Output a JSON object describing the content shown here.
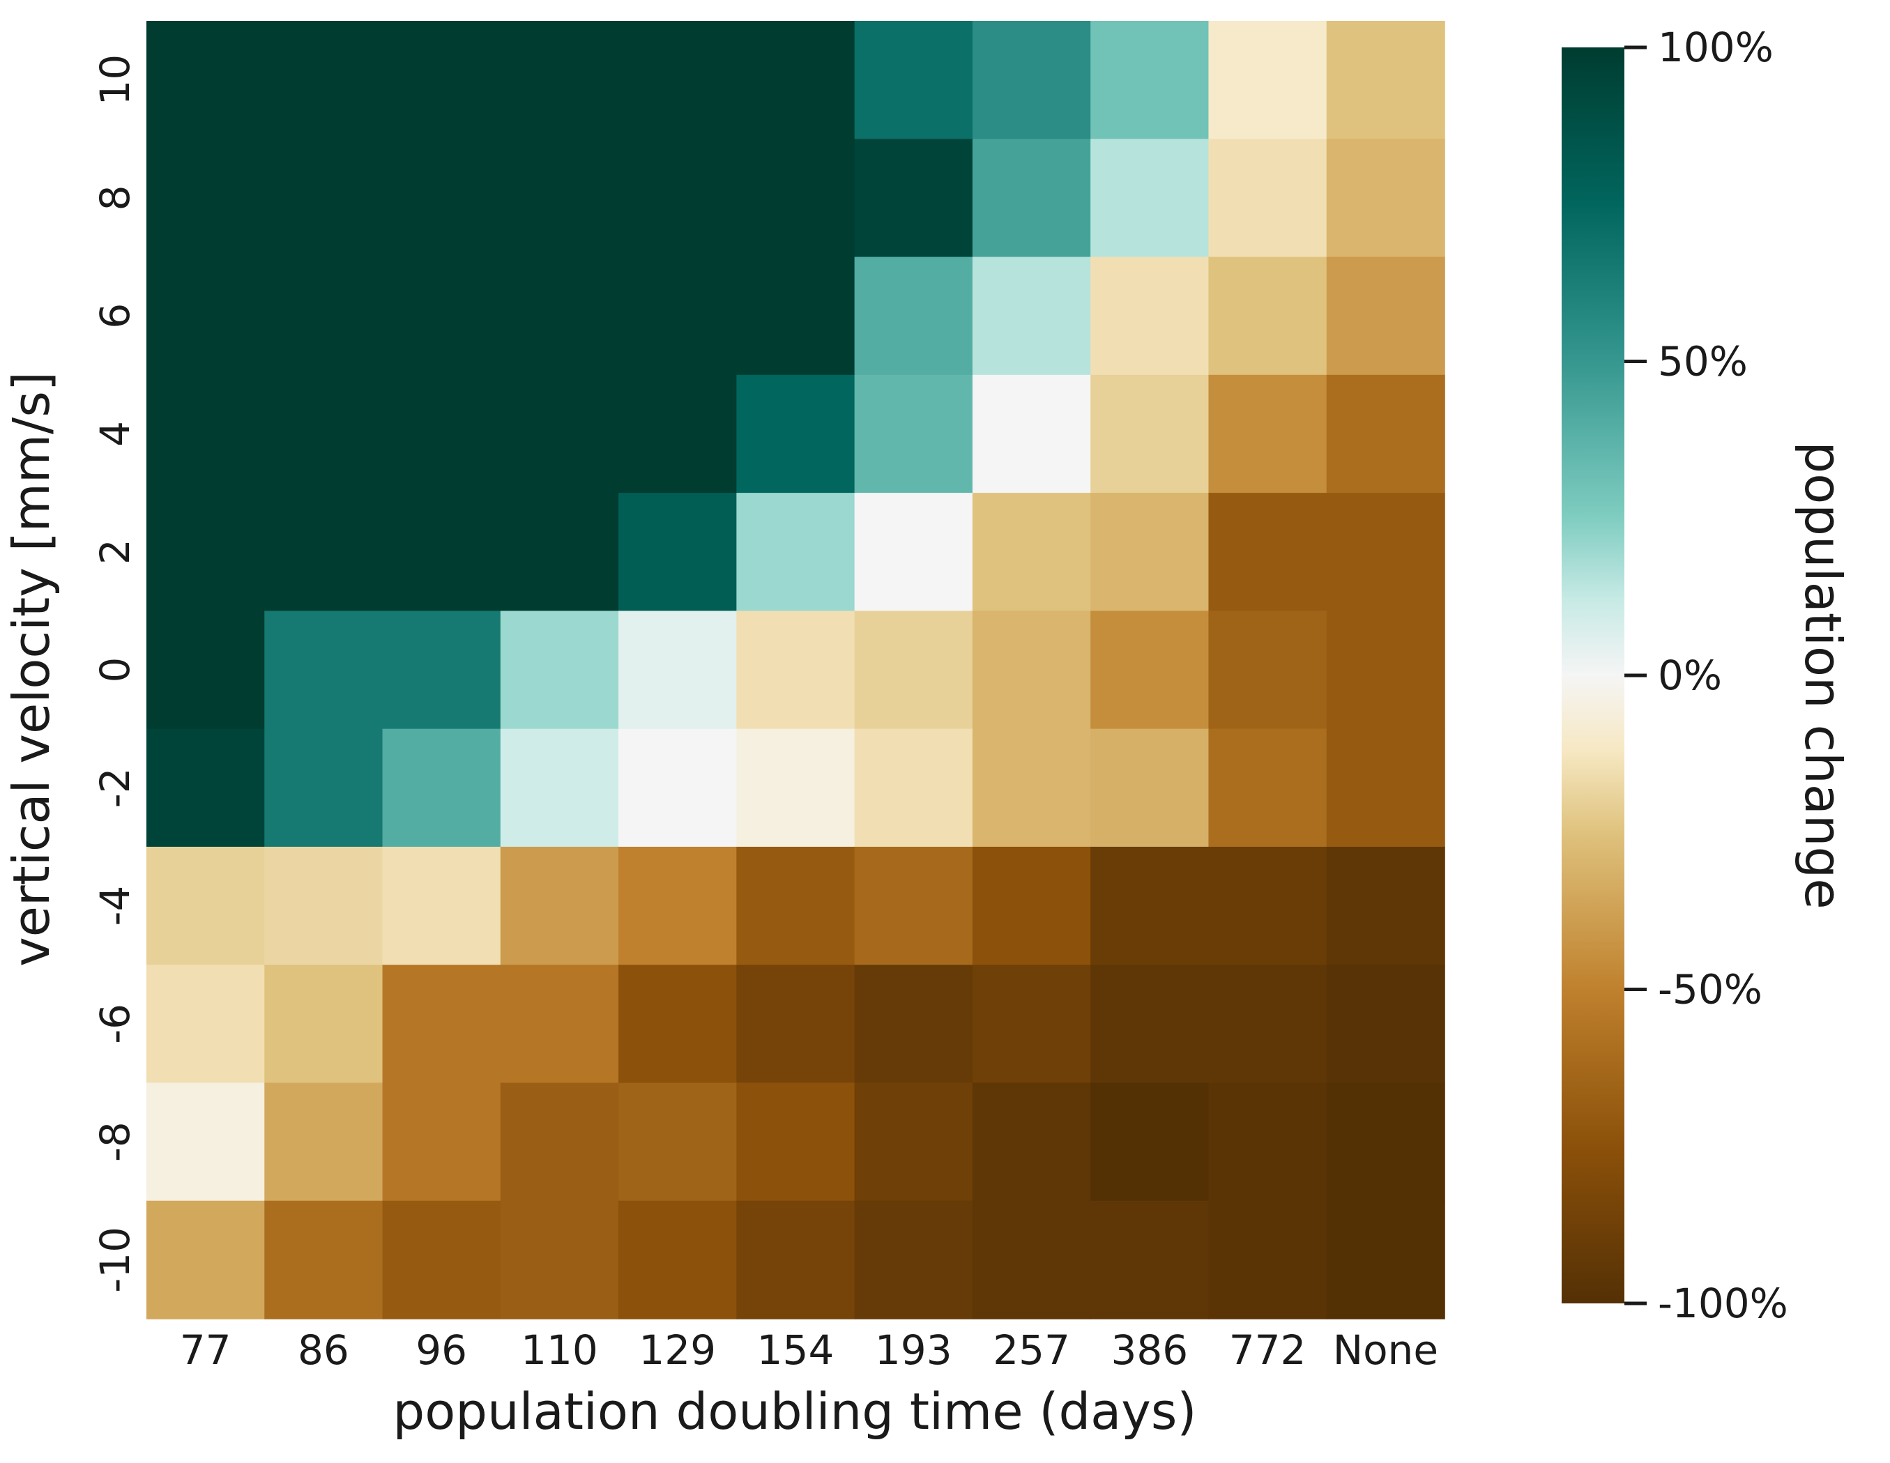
{
  "chart_data": {
    "type": "heatmap",
    "xlabel": "population doubling time (days)",
    "ylabel": "vertical velocity [mm/s]",
    "x_categories": [
      "77",
      "86",
      "96",
      "110",
      "129",
      "154",
      "193",
      "257",
      "386",
      "772",
      "None"
    ],
    "y_categories": [
      "10",
      "8",
      "6",
      "4",
      "2",
      "0",
      "-2",
      "-4",
      "-6",
      "-8",
      "-10"
    ],
    "values": [
      [
        100,
        100,
        100,
        100,
        100,
        100,
        70,
        55,
        30,
        -10,
        -25
      ],
      [
        100,
        100,
        100,
        100,
        100,
        100,
        95,
        45,
        15,
        -15,
        -30
      ],
      [
        100,
        100,
        100,
        100,
        100,
        100,
        40,
        15,
        -15,
        -25,
        -40
      ],
      [
        100,
        100,
        100,
        100,
        100,
        75,
        35,
        0,
        -20,
        -45,
        -60
      ],
      [
        100,
        100,
        100,
        100,
        80,
        20,
        0,
        -25,
        -30,
        -70,
        -70
      ],
      [
        100,
        65,
        65,
        20,
        5,
        -15,
        -20,
        -30,
        -45,
        -65,
        -70
      ],
      [
        95,
        65,
        40,
        10,
        0,
        -5,
        -15,
        -30,
        -32,
        -60,
        -70
      ],
      [
        -20,
        -18,
        -15,
        -40,
        -50,
        -70,
        -62,
        -75,
        -90,
        -90,
        -95
      ],
      [
        -15,
        -25,
        -55,
        -55,
        -75,
        -85,
        -92,
        -88,
        -95,
        -95,
        -98
      ],
      [
        -5,
        -35,
        -55,
        -68,
        -65,
        -75,
        -88,
        -95,
        -100,
        -97,
        -100
      ],
      [
        -35,
        -60,
        -70,
        -68,
        -75,
        -85,
        -92,
        -95,
        -95,
        -97,
        -100
      ]
    ],
    "colorbar": {
      "label": "population change",
      "ticks": [
        100,
        50,
        0,
        -50,
        -100
      ],
      "tick_labels": [
        "100%",
        "50%",
        "0%",
        "-50%",
        "-100%"
      ],
      "range": [
        -100,
        100
      ],
      "colormap": "BrBG",
      "colormap_stops": [
        [
          -100,
          "#543005"
        ],
        [
          -75,
          "#8c510a"
        ],
        [
          -50,
          "#bf812d"
        ],
        [
          -25,
          "#dfc27d"
        ],
        [
          -12,
          "#f6e8c3"
        ],
        [
          0,
          "#f5f5f5"
        ],
        [
          12,
          "#c7eae5"
        ],
        [
          25,
          "#80cdc1"
        ],
        [
          50,
          "#35978f"
        ],
        [
          75,
          "#01665e"
        ],
        [
          100,
          "#003c30"
        ]
      ]
    }
  }
}
